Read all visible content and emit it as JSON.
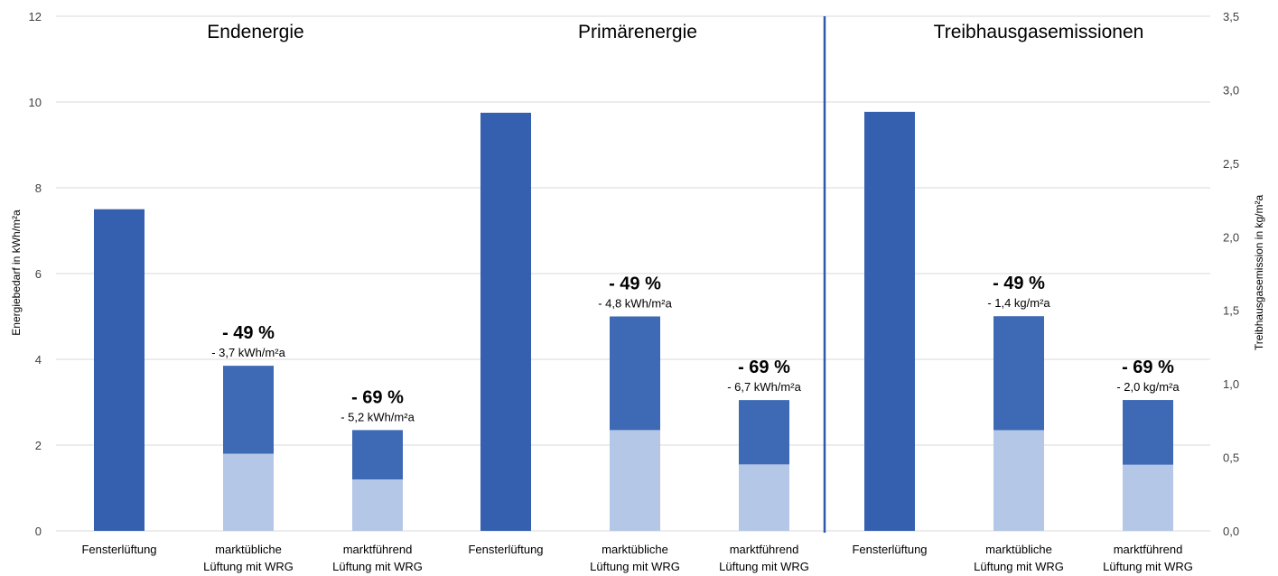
{
  "chart_data": {
    "type": "bar",
    "stacked": true,
    "groups": [
      {
        "title": "Endenergie",
        "axis": "left",
        "categories": [
          "Fensterlüftung",
          "marktübliche Lüftung mit WRG",
          "marktführend Lüftung mit WRG"
        ],
        "base": [
          7.5,
          1.8,
          1.2
        ],
        "top": [
          0,
          2.05,
          1.15
        ],
        "annotations": [
          null,
          {
            "pct": "- 49 %",
            "abs": "- 3,7 kWh/m²a"
          },
          {
            "pct": "- 69 %",
            "abs": "- 5,2 kWh/m²a"
          }
        ]
      },
      {
        "title": "Primärenergie",
        "axis": "left",
        "categories": [
          "Fensterlüftung",
          "marktübliche Lüftung mit WRG",
          "marktführend Lüftung mit WRG"
        ],
        "base": [
          9.75,
          2.35,
          1.55
        ],
        "top": [
          0,
          2.65,
          1.5
        ],
        "annotations": [
          null,
          {
            "pct": "- 49 %",
            "abs": "- 4,8 kWh/m²a"
          },
          {
            "pct": "- 69 %",
            "abs": "- 6,7 kWh/m²a"
          }
        ]
      },
      {
        "title": "Treibhausgasemissionen",
        "axis": "right",
        "categories": [
          "Fensterlüftung",
          "marktübliche Lüftung mit WRG",
          "marktführend Lüftung mit WRG"
        ],
        "base": [
          2.85,
          0.685,
          0.45
        ],
        "top": [
          0,
          0.775,
          0.44
        ],
        "annotations": [
          null,
          {
            "pct": "- 49 %",
            "abs": "- 1,4 kg/m²a"
          },
          {
            "pct": "- 69 %",
            "abs": "- 2,0 kg/m²a"
          }
        ]
      }
    ],
    "category_labels": [
      [
        "Fensterlüftung"
      ],
      [
        "marktübliche",
        "Lüftung mit WRG"
      ],
      [
        "marktführend",
        "Lüftung mit WRG"
      ]
    ],
    "y_left": {
      "label": "Energiebedarf in kWh/m²a",
      "ylim": [
        0,
        12
      ],
      "ticks": [
        "0",
        "2",
        "4",
        "6",
        "8",
        "10",
        "12"
      ]
    },
    "y_right": {
      "label": "Treibhausgasemission in kg/m²a",
      "ylim": [
        0,
        3.5
      ],
      "ticks": [
        "0,0",
        "0,5",
        "1,0",
        "1,5",
        "2,0",
        "2,5",
        "3,0",
        "3,5"
      ]
    },
    "grid": true,
    "colors": {
      "base_full": "#3560B0",
      "base_light": "#B4C7E7",
      "top": "#3D69B5",
      "divider": "#2E58A8",
      "grid": "#D9D9D9"
    }
  }
}
